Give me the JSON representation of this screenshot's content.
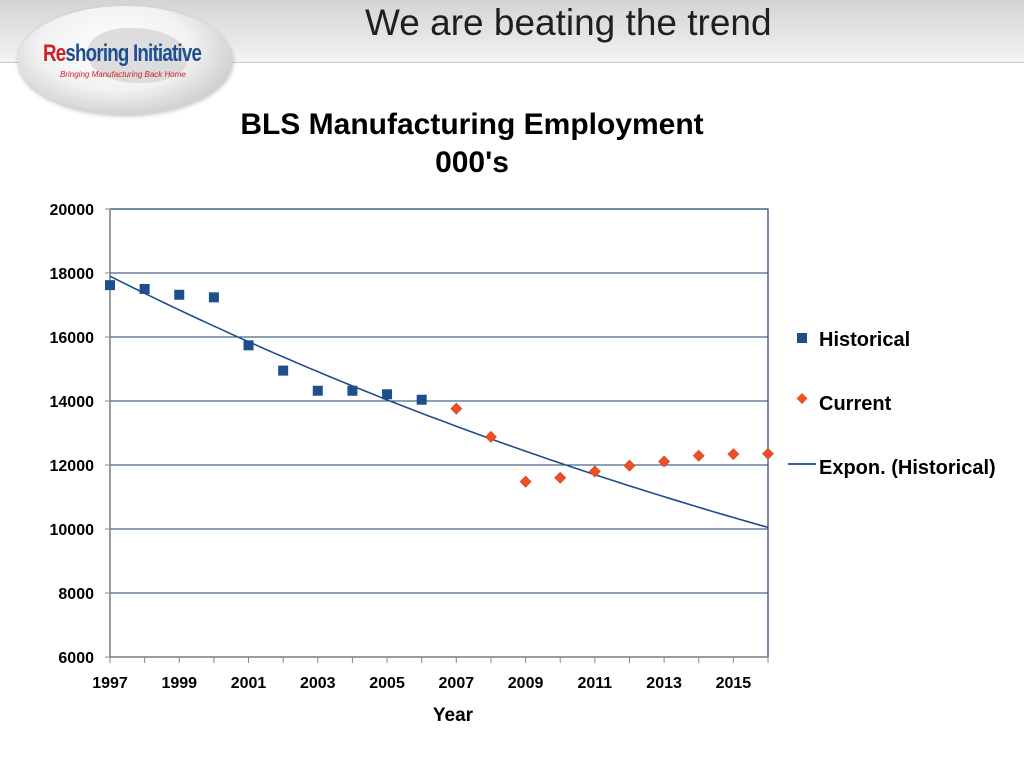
{
  "slide": {
    "title": "We are beating the trend"
  },
  "logo": {
    "brand_prefix": "Re",
    "brand_rest": "shoring Initiative",
    "tagline": "Bringing Manufacturing Back Home",
    "brand_colors": {
      "red": "#cc2229",
      "blue": "#1f4f8f"
    }
  },
  "chart_data": {
    "type": "scatter",
    "title": "BLS Manufacturing Employment",
    "subtitle": "000's",
    "xlabel": "Year",
    "ylabel": "",
    "xlim": [
      1997,
      2016
    ],
    "ylim": [
      6000,
      20000
    ],
    "x_ticks": [
      1997,
      1999,
      2001,
      2003,
      2005,
      2007,
      2009,
      2011,
      2013,
      2015
    ],
    "x_minor_ticks": [
      1997,
      1998,
      1999,
      2000,
      2001,
      2002,
      2003,
      2004,
      2005,
      2006,
      2007,
      2008,
      2009,
      2010,
      2011,
      2012,
      2013,
      2014,
      2015,
      2016
    ],
    "y_ticks": [
      6000,
      8000,
      10000,
      12000,
      14000,
      16000,
      18000,
      20000
    ],
    "grid": "horizontal",
    "legend_position": "right",
    "series": [
      {
        "name": "Historical",
        "marker": "square",
        "color": "#1f4e8c",
        "x": [
          1997,
          1998,
          1999,
          2000,
          2001,
          2002,
          2003,
          2004,
          2005,
          2006
        ],
        "y": [
          17620,
          17500,
          17320,
          17240,
          15740,
          14950,
          14320,
          14320,
          14210,
          14040
        ]
      },
      {
        "name": "Current",
        "marker": "diamond",
        "color": "#f04e23",
        "x": [
          2007,
          2008,
          2009,
          2010,
          2011,
          2012,
          2013,
          2014,
          2015,
          2016
        ],
        "y": [
          13760,
          12880,
          11480,
          11600,
          11800,
          11980,
          12110,
          12290,
          12340,
          12350
        ]
      },
      {
        "name": "Expon. (Historical)",
        "marker": "line",
        "color": "#1f4e8c",
        "x": [
          1997,
          2016
        ],
        "y": [
          17900,
          10050
        ],
        "fit": "exponential"
      }
    ]
  }
}
